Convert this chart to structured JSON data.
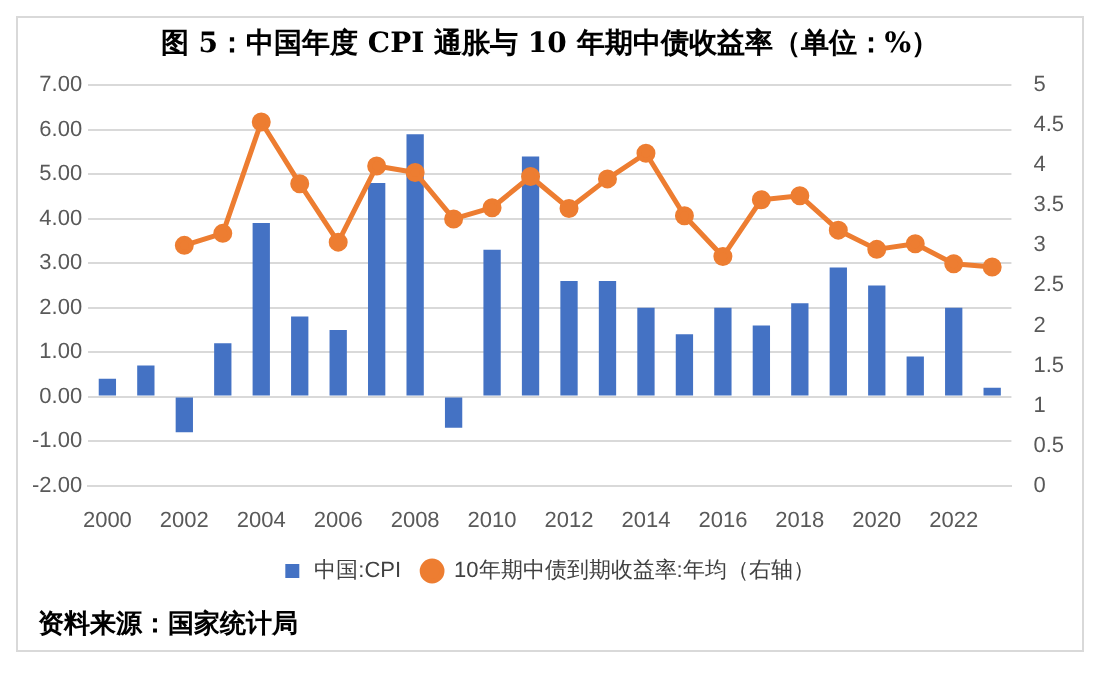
{
  "chart_data": {
    "type": "bar",
    "title": "图 5：中国年度 CPI 通胀与 10 年期中债收益率（单位：%）",
    "categories": [
      "2000",
      null,
      "2002",
      null,
      "2004",
      null,
      "2006",
      null,
      "2008",
      null,
      "2010",
      null,
      "2012",
      null,
      "2014",
      null,
      "2016",
      null,
      "2018",
      null,
      "2020",
      null,
      "2022",
      null
    ],
    "series": [
      {
        "name": "中国:CPI",
        "color": "#4472c4",
        "values": [
          0.4,
          0.7,
          -0.8,
          1.2,
          3.9,
          1.8,
          1.5,
          4.8,
          5.9,
          -0.7,
          3.3,
          5.4,
          2.6,
          2.6,
          2.0,
          1.4,
          2.0,
          1.6,
          2.1,
          2.9,
          2.5,
          0.9,
          2.0,
          0.2
        ]
      },
      {
        "name": "10年期中债到期收益率:年均（右轴）",
        "type": "line",
        "axis": "y2",
        "color": "#ed7d31",
        "values": [
          null,
          null,
          3.0,
          3.15,
          4.54,
          3.77,
          3.04,
          3.99,
          3.91,
          3.33,
          3.47,
          3.86,
          3.46,
          3.83,
          4.15,
          3.37,
          2.86,
          3.57,
          3.62,
          3.19,
          2.95,
          3.02,
          2.77,
          2.73
        ]
      }
    ],
    "ylim": [
      -2,
      7
    ],
    "yticks": [
      {
        "value": -2,
        "label": "-2.00"
      },
      {
        "value": -1,
        "label": "-1.00"
      },
      {
        "value": 0,
        "label": "0.00"
      },
      {
        "value": 1,
        "label": "1.00"
      },
      {
        "value": 2,
        "label": "2.00"
      },
      {
        "value": 3,
        "label": "3.00"
      },
      {
        "value": 4,
        "label": "4.00"
      },
      {
        "value": 5,
        "label": "5.00"
      },
      {
        "value": 6,
        "label": "6.00"
      },
      {
        "value": 7,
        "label": "7.00"
      }
    ],
    "y2lim": [
      0,
      5
    ],
    "y2ticks": [
      0,
      0.5,
      1,
      1.5,
      2,
      2.5,
      3,
      3.5,
      4,
      4.5,
      5
    ],
    "grid": "y",
    "legend": "bottom",
    "marker": "circle",
    "annotations": [
      "资料来源：国家统计局"
    ]
  }
}
